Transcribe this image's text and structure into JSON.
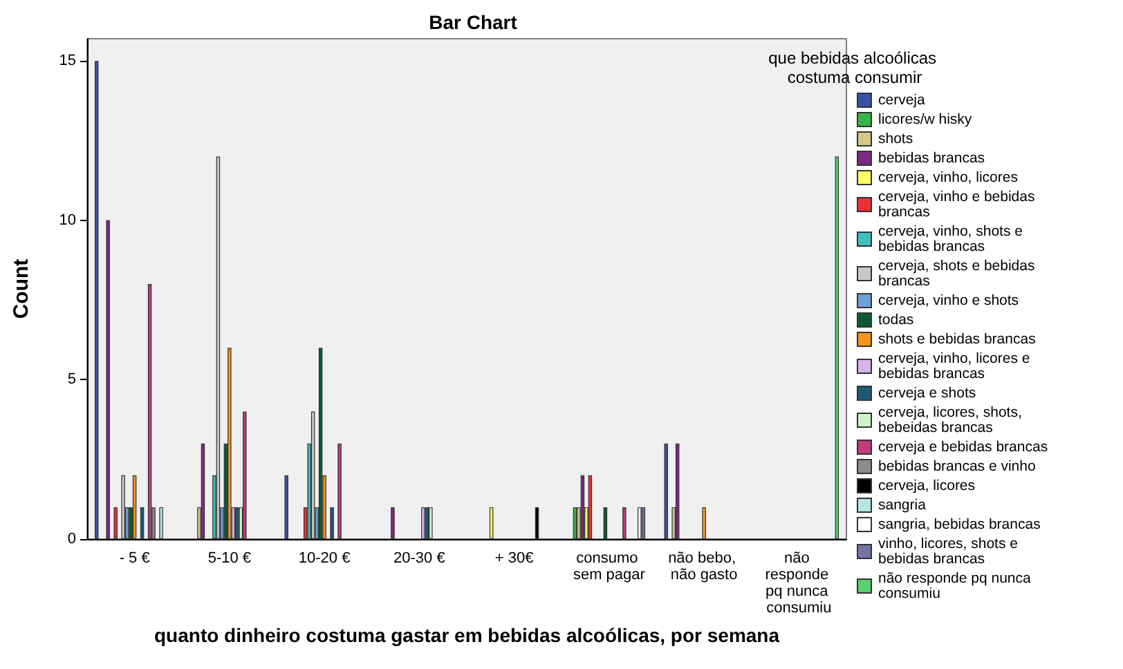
{
  "chart_data": {
    "type": "bar",
    "title": "Bar Chart",
    "xlabel": "quanto dinheiro costuma gastar em bebidas alcoólicas, por semana",
    "ylabel": "Count",
    "legend_title": "que bebidas alcoólicas costuma consumir",
    "legend": "right",
    "grid": false,
    "categories": [
      "- 5 €",
      "5-10 €",
      "10-20 €",
      "20-30 €",
      "+ 30€",
      "consumo sem pagar",
      "não bebo, não gasto",
      "não responde pq nunca consumiu"
    ],
    "ylim": [
      0,
      15.7
    ],
    "yticks": [
      0,
      5,
      10,
      15
    ],
    "series": [
      {
        "name": "cerveja",
        "color": "#3953a4",
        "values": [
          15,
          0,
          2,
          0,
          0,
          0,
          3,
          0
        ]
      },
      {
        "name": "licores/w hisky",
        "color": "#35b44a",
        "values": [
          0,
          0,
          0,
          0,
          0,
          1,
          0,
          0
        ]
      },
      {
        "name": "shots",
        "color": "#d4c88a",
        "values": [
          0,
          1,
          0,
          0,
          0,
          1,
          1,
          0
        ]
      },
      {
        "name": "bebidas brancas",
        "color": "#7b2a82",
        "values": [
          10,
          3,
          0,
          1,
          0,
          2,
          3,
          0
        ]
      },
      {
        "name": "cerveja, vinho, licores",
        "color": "#ffff66",
        "values": [
          0,
          0,
          0,
          0,
          1,
          1,
          0,
          0
        ]
      },
      {
        "name": "cerveja, vinho e bebidas brancas",
        "color": "#ee3035",
        "values": [
          1,
          0,
          1,
          0,
          0,
          2,
          0,
          0
        ]
      },
      {
        "name": "cerveja, vinho, shots e bebidas brancas",
        "color": "#3fbfbf",
        "values": [
          0,
          2,
          3,
          0,
          0,
          0,
          0,
          0
        ]
      },
      {
        "name": "cerveja, shots e bebidas brancas",
        "color": "#c8c8c8",
        "values": [
          2,
          12,
          4,
          0,
          0,
          0,
          0,
          0
        ]
      },
      {
        "name": "cerveja, vinho e shots",
        "color": "#6ea0d8",
        "values": [
          1,
          1,
          1,
          0,
          0,
          0,
          0,
          0
        ]
      },
      {
        "name": "todas",
        "color": "#0f5a32",
        "values": [
          1,
          3,
          6,
          0,
          0,
          1,
          0,
          0
        ]
      },
      {
        "name": "shots e bebidas brancas",
        "color": "#f7941d",
        "values": [
          2,
          6,
          2,
          0,
          0,
          0,
          1,
          0
        ]
      },
      {
        "name": "cerveja, vinho, licores e bebidas brancas",
        "color": "#d8b4ec",
        "values": [
          0,
          1,
          0,
          1,
          0,
          0,
          0,
          0
        ]
      },
      {
        "name": "cerveja e shots",
        "color": "#1e5a78",
        "values": [
          1,
          1,
          1,
          1,
          0,
          0,
          0,
          0
        ]
      },
      {
        "name": "cerveja, licores, shots, bebeidas brancas",
        "color": "#cdf5c8",
        "values": [
          0,
          1,
          0,
          1,
          0,
          0,
          0,
          0
        ]
      },
      {
        "name": "cerveja e bebidas brancas",
        "color": "#c03c7e",
        "values": [
          8,
          4,
          3,
          0,
          0,
          1,
          0,
          0
        ]
      },
      {
        "name": "bebidas brancas e vinho",
        "color": "#8c8c8c",
        "values": [
          1,
          0,
          0,
          0,
          0,
          0,
          0,
          0
        ]
      },
      {
        "name": "cerveja, licores",
        "color": "#000000",
        "values": [
          0,
          0,
          0,
          0,
          1,
          0,
          0,
          0
        ]
      },
      {
        "name": "sangria",
        "color": "#b4e6e6",
        "values": [
          1,
          0,
          0,
          0,
          0,
          0,
          0,
          0
        ]
      },
      {
        "name": "sangria, bebidas brancas",
        "color": "#ffffff",
        "values": [
          0,
          0,
          0,
          0,
          0,
          1,
          0,
          0
        ]
      },
      {
        "name": "vinho, licores, shots e bebidas brancas",
        "color": "#7474a8",
        "values": [
          0,
          0,
          0,
          0,
          0,
          1,
          0,
          0
        ]
      },
      {
        "name": "não responde pq nunca consumiu",
        "color": "#5ad06e",
        "values": [
          0,
          0,
          0,
          0,
          0,
          0,
          0,
          12
        ]
      }
    ]
  }
}
